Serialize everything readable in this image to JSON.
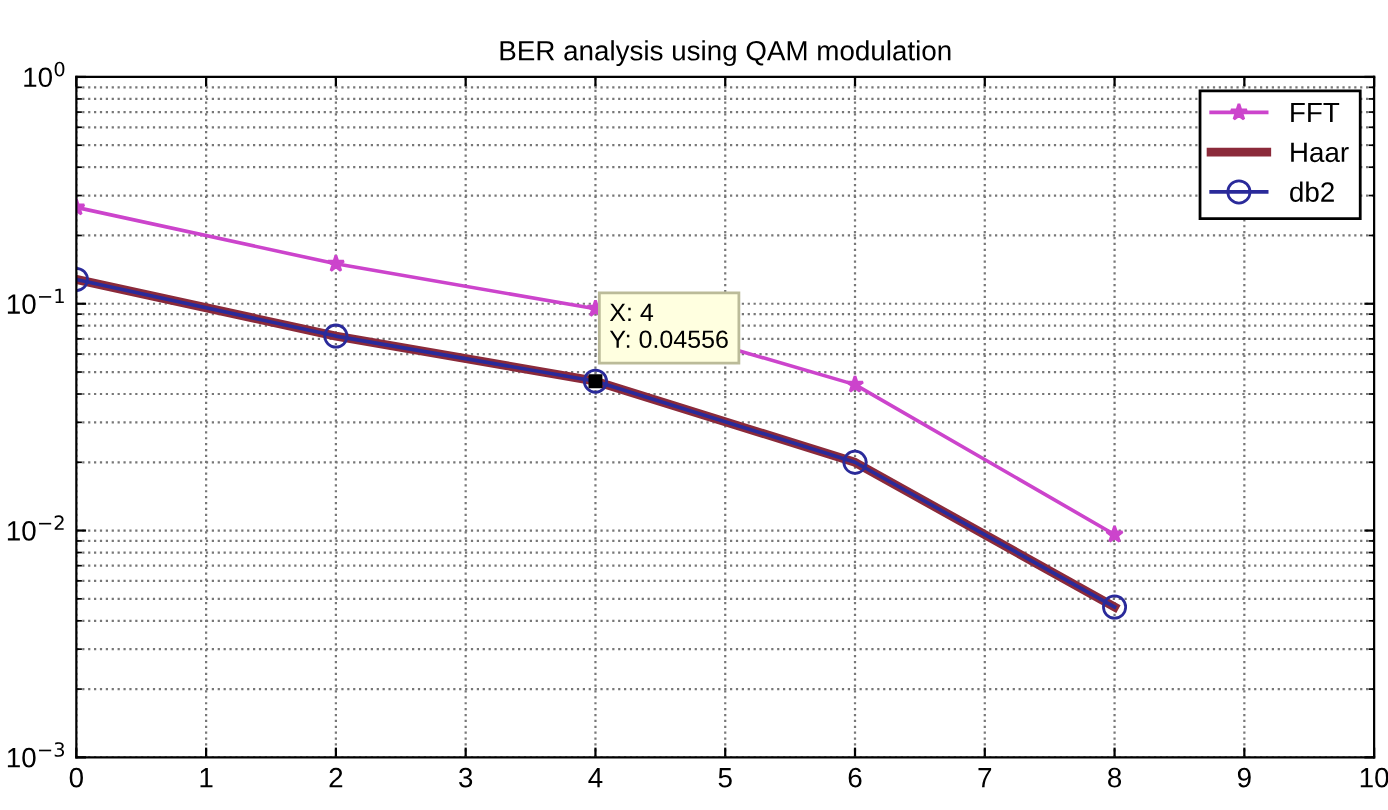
{
  "chart_data": {
    "type": "line",
    "title": "BER analysis using QAM modulation",
    "x": [
      0,
      2,
      4,
      6,
      8
    ],
    "series": [
      {
        "name": "FFT",
        "color": "#cc44cc",
        "marker": "star",
        "values": [
          0.266,
          0.15,
          0.095,
          0.044,
          0.0096
        ]
      },
      {
        "name": "Haar",
        "color": "#8b2a3a",
        "marker": "none",
        "values": [
          0.128,
          0.072,
          0.04556,
          0.02,
          0.0046
        ]
      },
      {
        "name": "db2",
        "color": "#2a2a9a",
        "marker": "circle",
        "values": [
          0.128,
          0.072,
          0.04556,
          0.02,
          0.0046
        ]
      }
    ],
    "log": "y",
    "xlim": [
      0,
      10
    ],
    "xticks": [
      0,
      1,
      2,
      3,
      4,
      5,
      6,
      7,
      8,
      9,
      10
    ],
    "ylim": [
      0.001,
      1
    ],
    "yticks": [
      {
        "value": 0.001,
        "label": "10$^{−3}$"
      },
      {
        "value": 0.01,
        "label": "10$^{−2}$"
      },
      {
        "value": 0.1,
        "label": "10$^{−1}$"
      },
      {
        "value": 1,
        "label": "10$^{0}$"
      }
    ],
    "grid": true,
    "legend": "top right",
    "line_style": "solid",
    "annotations": [
      {
        "text": "X: 4\nY: 0.04556",
        "x": 4,
        "y": 0.04556
      }
    ]
  }
}
